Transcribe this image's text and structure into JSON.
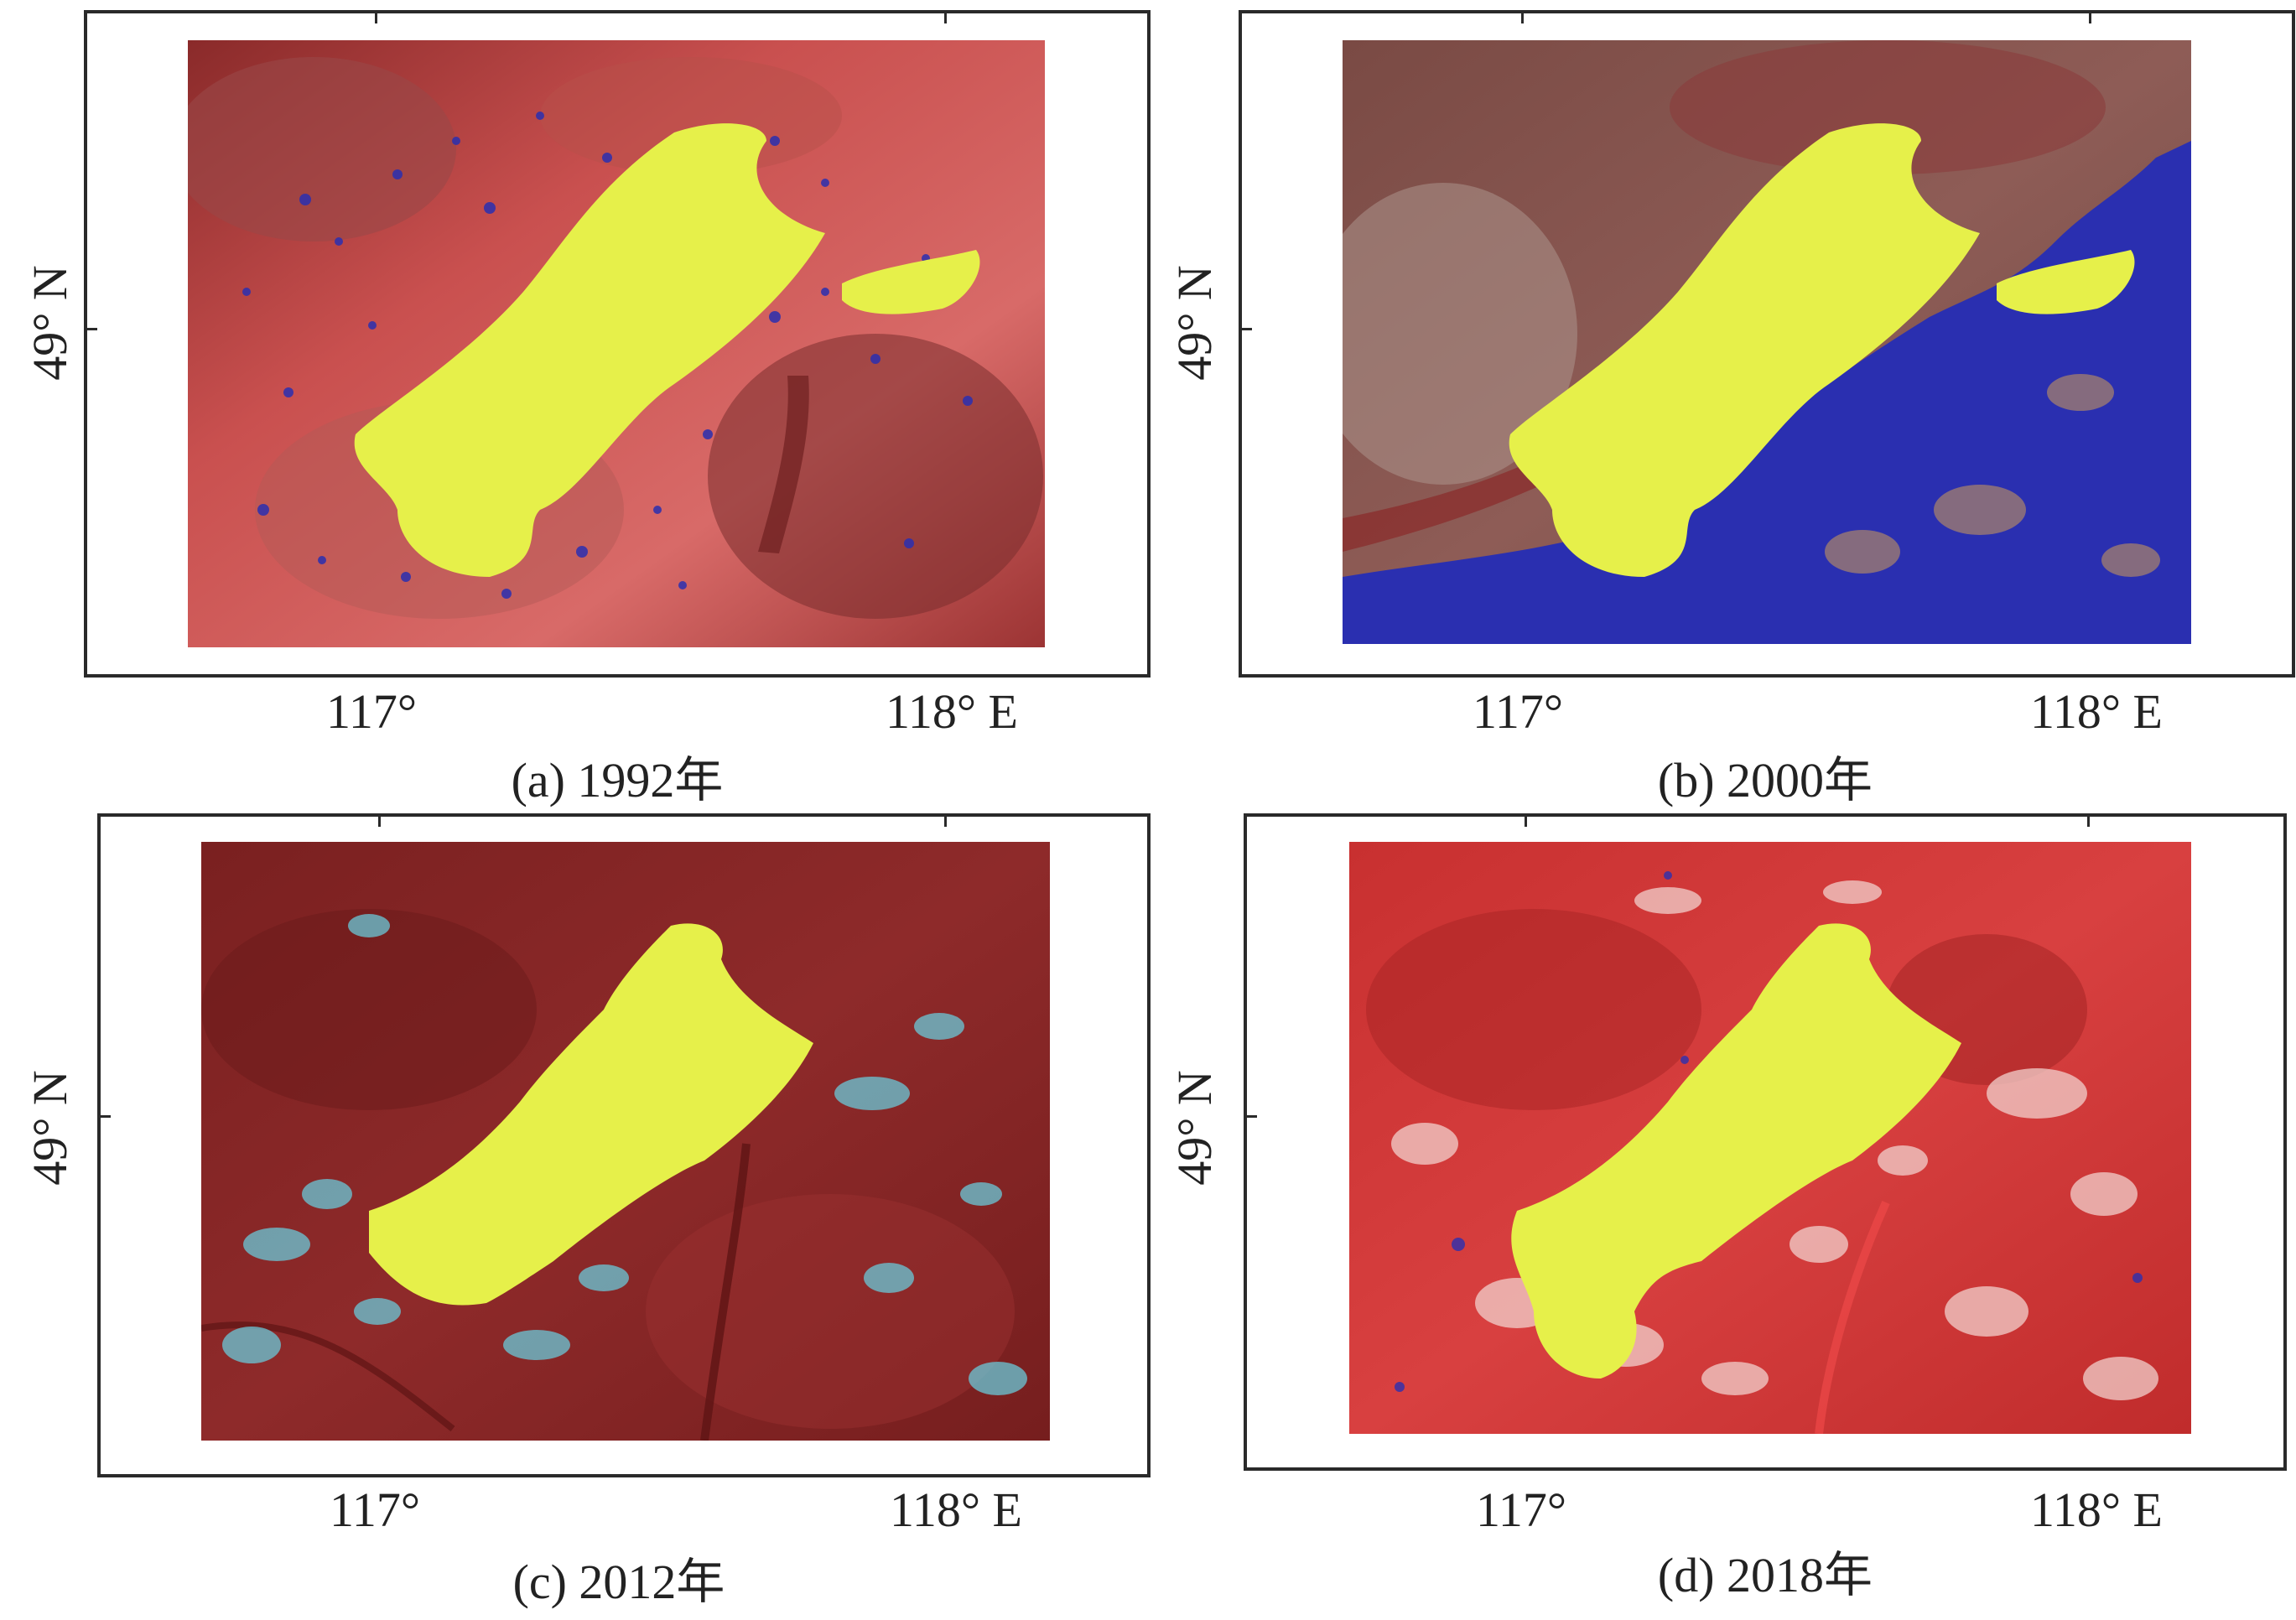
{
  "colors": {
    "lake": "#e6f04a",
    "water_blue": "#2a2fb0",
    "terrain_red": "#c23f3f",
    "terrain_dark": "#7a2222",
    "frame": "#2a2a2a"
  },
  "panels": [
    {
      "caption": "(a) 1992年",
      "lat_label": "49° N",
      "lon_labels": [
        "117°",
        "118°  E"
      ],
      "terrain": "red-pink",
      "blue_water": "scattered"
    },
    {
      "caption": "(b) 2000年",
      "lat_label": "49° N",
      "lon_labels": [
        "117°",
        "118°  E"
      ],
      "terrain": "brown",
      "blue_water": "extensive east"
    },
    {
      "caption": "(c) 2012年",
      "lat_label": "49° N",
      "lon_labels": [
        "117°",
        "118°  E"
      ],
      "terrain": "dark red",
      "blue_water": "cyan speckle"
    },
    {
      "caption": "(d) 2018年",
      "lat_label": "49° N",
      "lon_labels": [
        "117°",
        "118°  E"
      ],
      "terrain": "bright red",
      "blue_water": "sparse"
    }
  ]
}
